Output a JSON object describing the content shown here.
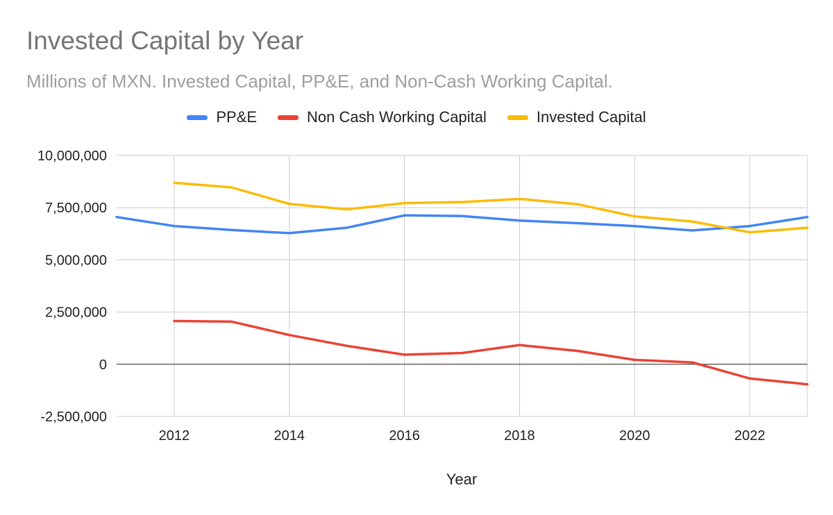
{
  "chart_data": {
    "type": "line",
    "title": "Invested Capital by Year",
    "subtitle": "Millions of MXN. Invested Capital, PP&E, and Non-Cash Working Capital.",
    "xlabel": "Year",
    "ylabel": "",
    "xlim": [
      2011,
      2023
    ],
    "ylim": [
      -2500000,
      10000000
    ],
    "x_ticks": [
      2012,
      2014,
      2016,
      2018,
      2020,
      2022
    ],
    "y_ticks": [
      -2500000,
      0,
      2500000,
      5000000,
      7500000,
      10000000
    ],
    "y_tick_labels": [
      "-2,500,000",
      "0",
      "2,500,000",
      "5,000,000",
      "7,500,000",
      "10,000,000"
    ],
    "grid": true,
    "legend_position": "top",
    "series": [
      {
        "name": "PP&E",
        "color": "#4285f4",
        "x": [
          2011,
          2012,
          2013,
          2014,
          2015,
          2016,
          2017,
          2018,
          2019,
          2020,
          2021,
          2022,
          2023
        ],
        "values": [
          7050000,
          6620000,
          6430000,
          6280000,
          6540000,
          7130000,
          7100000,
          6880000,
          6760000,
          6620000,
          6410000,
          6620000,
          7050000
        ]
      },
      {
        "name": "Non Cash Working Capital",
        "color": "#ea4335",
        "x": [
          2012,
          2013,
          2014,
          2015,
          2016,
          2017,
          2018,
          2019,
          2020,
          2021,
          2022,
          2023
        ],
        "values": [
          2070000,
          2040000,
          1400000,
          880000,
          460000,
          540000,
          920000,
          640000,
          210000,
          90000,
          -680000,
          -960000
        ]
      },
      {
        "name": "Invested Capital",
        "color": "#fbbc04",
        "x": [
          2012,
          2013,
          2014,
          2015,
          2016,
          2017,
          2018,
          2019,
          2020,
          2021,
          2022,
          2023
        ],
        "values": [
          8690000,
          8470000,
          7680000,
          7420000,
          7720000,
          7770000,
          7920000,
          7670000,
          7080000,
          6840000,
          6320000,
          6540000
        ]
      }
    ]
  }
}
